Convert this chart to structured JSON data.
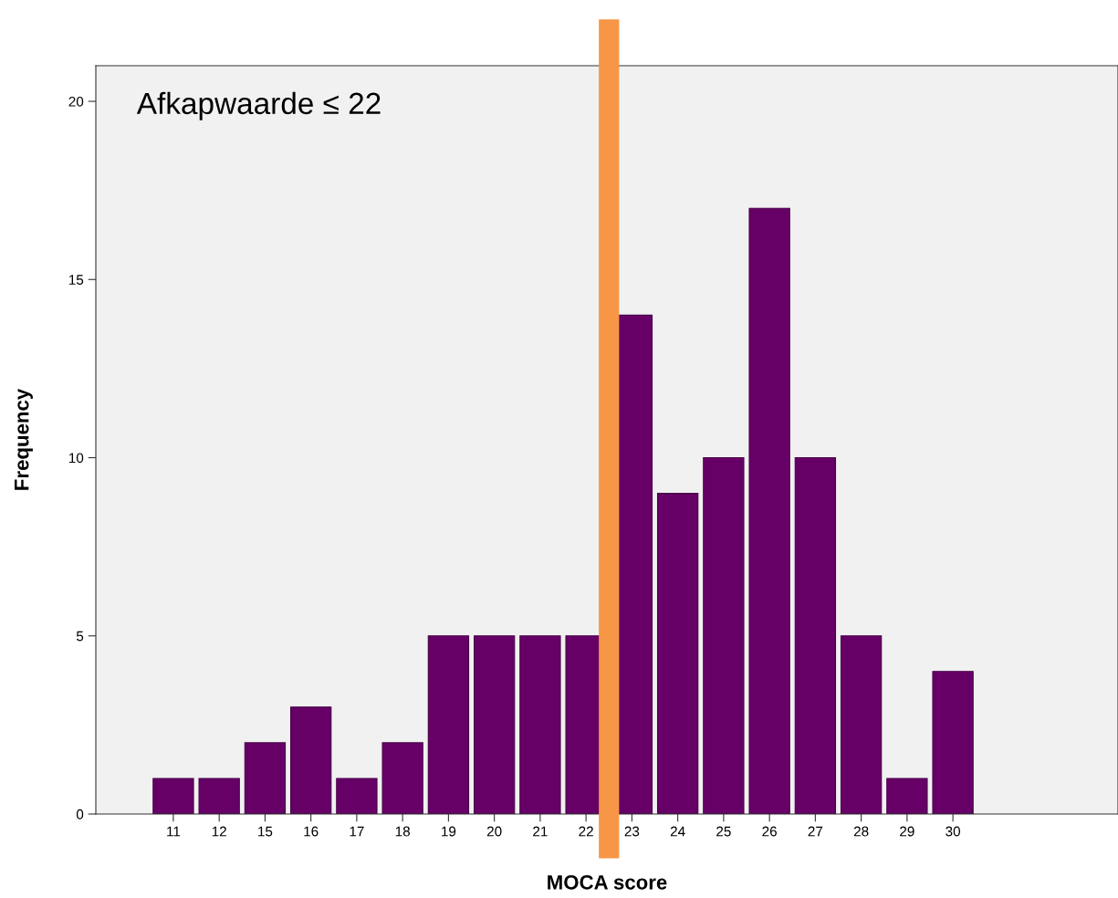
{
  "chart_data": {
    "type": "bar",
    "xlabel": "MOCA score",
    "ylabel": "Frequency",
    "categories": [
      "11",
      "12",
      "15",
      "16",
      "17",
      "18",
      "19",
      "20",
      "21",
      "22",
      "23",
      "24",
      "25",
      "26",
      "27",
      "28",
      "29",
      "30"
    ],
    "values": [
      1,
      1,
      2,
      3,
      1,
      2,
      5,
      5,
      5,
      5,
      14,
      9,
      10,
      17,
      10,
      5,
      1,
      4
    ],
    "color": "#660066",
    "ylim": [
      0,
      21
    ],
    "yticks": [
      0,
      5,
      10,
      15,
      20
    ],
    "grid": false,
    "legend": false,
    "ref_lines": [
      {
        "axis": "x",
        "value": "22",
        "label": null,
        "color": "#f79646",
        "line_style": "solid"
      }
    ],
    "annotations": [
      "Afkapwaarde ≤ 22"
    ]
  }
}
